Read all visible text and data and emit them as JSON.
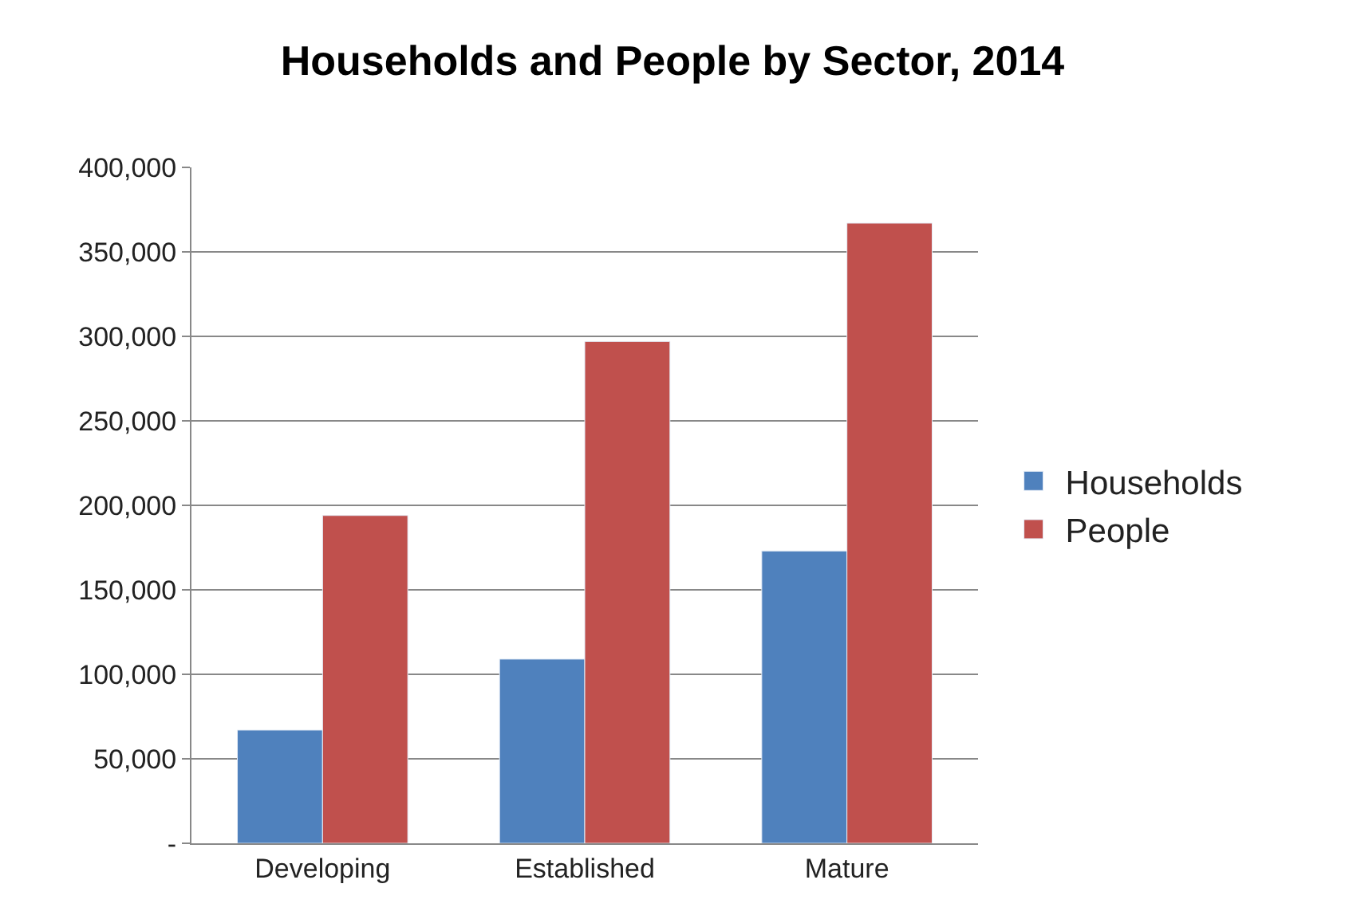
{
  "chart_data": {
    "type": "bar",
    "title": "Households and People by Sector, 2014",
    "categories": [
      "Developing",
      "Established",
      "Mature"
    ],
    "series": [
      {
        "name": "Households",
        "color": "#4f81bd",
        "values": [
          67000,
          109000,
          173000
        ]
      },
      {
        "name": "People",
        "color": "#c0504d",
        "values": [
          194000,
          297000,
          367000
        ]
      }
    ],
    "ylim": [
      0,
      400000
    ],
    "yticks": [
      {
        "value": 0,
        "label": "-"
      },
      {
        "value": 50000,
        "label": "50,000"
      },
      {
        "value": 100000,
        "label": "100,000"
      },
      {
        "value": 150000,
        "label": "150,000"
      },
      {
        "value": 200000,
        "label": "200,000"
      },
      {
        "value": 250000,
        "label": "250,000"
      },
      {
        "value": 300000,
        "label": "300,000"
      },
      {
        "value": 350000,
        "label": "350,000"
      },
      {
        "value": 400000,
        "label": "400,000"
      }
    ],
    "grid": "y",
    "legend": "right"
  }
}
